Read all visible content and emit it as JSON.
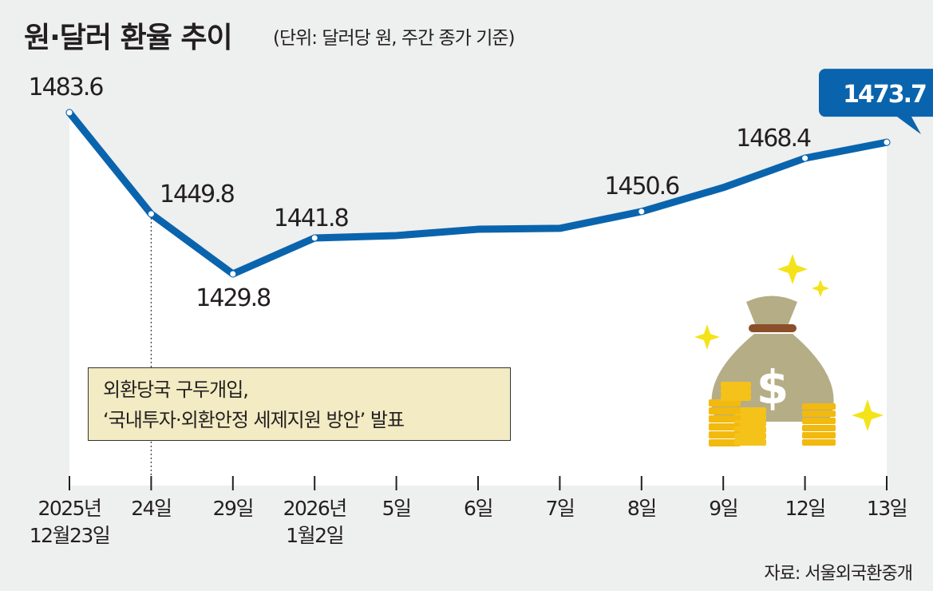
{
  "header": {
    "title": "원·달러 환율 추이",
    "unit": "(단위: 달러당 원, 주간 종가 기준)"
  },
  "note": {
    "line1": "외환당국 구두개입,",
    "line2": "‘국내투자·외환안정 세제지원 방안’ 발표"
  },
  "source": "자료: 서울외국환중개",
  "colors": {
    "line": "#0a64ad",
    "highlight": "#0a64ad",
    "note_bg": "#f2ebc3",
    "bg": "#eeefef"
  },
  "chart_data": {
    "type": "line",
    "title": "원·달러 환율 추이",
    "ylabel": "달러당 원",
    "ylim": [
      1429.8,
      1483.6
    ],
    "grid": false,
    "categories": [
      [
        "2025년",
        "12월23일"
      ],
      [
        "24일"
      ],
      [
        "29일"
      ],
      [
        "2026년",
        "1월2일"
      ],
      [
        "5일"
      ],
      [
        "6일"
      ],
      [
        "7일"
      ],
      [
        "8일"
      ],
      [
        "9일"
      ],
      [
        "12일"
      ],
      [
        "13일"
      ]
    ],
    "series": [
      {
        "name": "원·달러 환율",
        "values": [
          1483.6,
          1449.8,
          1429.8,
          1441.8,
          1442.6,
          1444.7,
          1445.0,
          1450.6,
          1458.6,
          1468.4,
          1473.7
        ]
      }
    ],
    "labels": [
      {
        "index": 0,
        "text": "1483.6"
      },
      {
        "index": 1,
        "text": "1449.8"
      },
      {
        "index": 2,
        "text": "1429.8"
      },
      {
        "index": 3,
        "text": "1441.8"
      },
      {
        "index": 7,
        "text": "1450.6"
      },
      {
        "index": 9,
        "text": "1468.4"
      },
      {
        "index": 10,
        "text": "1473.7",
        "highlight": true
      }
    ]
  }
}
